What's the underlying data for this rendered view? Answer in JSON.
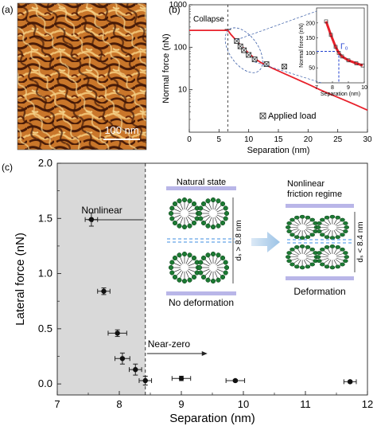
{
  "panel_labels": {
    "a": "(a)",
    "b": "(b)",
    "c": "(c)"
  },
  "panel_a": {
    "scale_bar_label": "100 nm"
  },
  "chart_data": [
    {
      "type": "line",
      "panel": "b",
      "xlabel": "Separation (nm)",
      "ylabel": "Normal force (nN)",
      "xlim": [
        0,
        30
      ],
      "ylim": [
        1,
        1000
      ],
      "yscale": "log",
      "x_ticks": [
        0,
        5,
        10,
        15,
        20,
        25,
        30
      ],
      "y_ticks": [
        10,
        100,
        1000
      ],
      "y_tick_labels": [
        "10",
        "100",
        "1000"
      ],
      "collapse_label": "Collapse",
      "collapse_x": 6.5,
      "series": [
        {
          "color": "#e8202a",
          "x": [
            0,
            6.5,
            7,
            8,
            9,
            10,
            11,
            12,
            14,
            16,
            18,
            20,
            22,
            24,
            26,
            28,
            30
          ],
          "y": [
            250,
            250,
            200,
            140,
            100,
            72,
            55,
            44,
            32,
            24,
            18,
            13.5,
            10,
            7.6,
            5.8,
            4.4,
            3.3
          ]
        },
        {
          "name": "Applied load",
          "x": [
            8.0,
            8.6,
            9.2,
            10.0,
            11.0,
            13.0,
            16.0
          ],
          "y": [
            140,
            105,
            85,
            66,
            52,
            40,
            35
          ]
        }
      ],
      "legend": "Applied load",
      "inset": {
        "xlabel": "Separation (nm)",
        "ylabel": "Normal force (nN)",
        "xlim": [
          7,
          10
        ],
        "ylim": [
          0,
          250
        ],
        "x_ticks": [
          7,
          8,
          9,
          10
        ],
        "y_ticks": [
          50,
          100,
          150,
          200
        ],
        "gamma_label": "Γ₀",
        "threshold_x": 8.4,
        "threshold_y": 105,
        "x": [
          7.6,
          7.9,
          8.2,
          8.4,
          8.6,
          9.0,
          9.5,
          9.9
        ],
        "y": [
          205,
          160,
          120,
          100,
          88,
          75,
          65,
          58
        ]
      }
    },
    {
      "type": "scatter",
      "panel": "c",
      "xlabel": "Separation (nm)",
      "ylabel": "Lateral force (nN)",
      "xlim": [
        7,
        12
      ],
      "ylim": [
        -0.1,
        2.0
      ],
      "x_ticks": [
        7,
        8,
        9,
        10,
        11,
        12
      ],
      "y_ticks": [
        0.0,
        0.5,
        1.0,
        1.5,
        2.0
      ],
      "y_tick_labels": [
        "0.0",
        "0.5",
        "1.0",
        "1.5",
        "2.0"
      ],
      "threshold_x": 8.42,
      "nonlinear_label": "Nonlinear",
      "nearzero_label": "Near-zero",
      "points": [
        {
          "x": 7.55,
          "y": 1.49,
          "xerr": 0.1,
          "yerr": 0.06
        },
        {
          "x": 7.75,
          "y": 0.84,
          "xerr": 0.1,
          "yerr": 0.03
        },
        {
          "x": 7.97,
          "y": 0.46,
          "xerr": 0.15,
          "yerr": 0.03
        },
        {
          "x": 8.05,
          "y": 0.23,
          "xerr": 0.12,
          "yerr": 0.05
        },
        {
          "x": 8.26,
          "y": 0.13,
          "xerr": 0.1,
          "yerr": 0.05
        },
        {
          "x": 8.42,
          "y": 0.03,
          "xerr": 0.1,
          "yerr": 0.04
        },
        {
          "x": 9.0,
          "y": 0.05,
          "xerr": 0.15,
          "yerr": 0.02
        },
        {
          "x": 9.87,
          "y": 0.03,
          "xerr": 0.15,
          "yerr": 0.01
        },
        {
          "x": 11.72,
          "y": 0.02,
          "xerr": 0.1,
          "yerr": 0.01
        }
      ],
      "schematic": {
        "left_title": "Natural state",
        "left_caption": "No deformation",
        "left_spacing": "dₛ > 8.8 nm",
        "right_title_1": "Nonlinear",
        "right_title_2": "friction regime",
        "right_caption": "Deformation",
        "right_spacing": "dₛ < 8.4 nm"
      }
    }
  ],
  "colors": {
    "curve": "#e8202a",
    "shade": "#d9d9d9",
    "plate": "#b9b6e8",
    "dashed_blue": "#3c8ee0",
    "arrow_blue": "#a8cbe8",
    "afm_dark": "#4a1c08",
    "afm_light": "#f0c072"
  }
}
